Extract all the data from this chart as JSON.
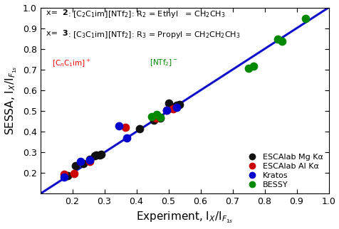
{
  "xlabel": "Experiment, I$_X$/I$_{F_{1s}}$",
  "ylabel": "SESSA, I$_X$/I$_{F_{1s}}$",
  "xlim": [
    0.1,
    1.0
  ],
  "ylim": [
    0.1,
    1.0
  ],
  "xticks": [
    0.2,
    0.3,
    0.4,
    0.5,
    0.6,
    0.7,
    0.8,
    0.9,
    1.0
  ],
  "yticks": [
    0.2,
    0.3,
    0.4,
    0.5,
    0.6,
    0.7,
    0.8,
    0.9,
    1.0
  ],
  "line_color": "#1111cc",
  "line_width": 2.2,
  "black_points": [
    [
      0.185,
      0.187
    ],
    [
      0.21,
      0.235
    ],
    [
      0.235,
      0.247
    ],
    [
      0.255,
      0.267
    ],
    [
      0.27,
      0.282
    ],
    [
      0.275,
      0.288
    ],
    [
      0.285,
      0.286
    ],
    [
      0.29,
      0.292
    ],
    [
      0.41,
      0.415
    ],
    [
      0.455,
      0.457
    ],
    [
      0.475,
      0.465
    ],
    [
      0.5,
      0.537
    ],
    [
      0.51,
      0.522
    ],
    [
      0.525,
      0.527
    ],
    [
      0.535,
      0.532
    ]
  ],
  "red_points": [
    [
      0.175,
      0.196
    ],
    [
      0.205,
      0.198
    ],
    [
      0.255,
      0.257
    ],
    [
      0.365,
      0.422
    ],
    [
      0.46,
      0.465
    ],
    [
      0.495,
      0.503
    ],
    [
      0.515,
      0.512
    ]
  ],
  "blue_points": [
    [
      0.175,
      0.182
    ],
    [
      0.225,
      0.257
    ],
    [
      0.255,
      0.262
    ],
    [
      0.345,
      0.427
    ],
    [
      0.37,
      0.368
    ],
    [
      0.495,
      0.503
    ],
    [
      0.525,
      0.517
    ]
  ],
  "green_points": [
    [
      0.447,
      0.472
    ],
    [
      0.463,
      0.483
    ],
    [
      0.475,
      0.468
    ],
    [
      0.75,
      0.708
    ],
    [
      0.765,
      0.718
    ],
    [
      0.84,
      0.848
    ],
    [
      0.855,
      0.836
    ],
    [
      0.928,
      0.946
    ]
  ],
  "marker_size": 55,
  "black_color": "#111111",
  "red_color": "#cc0000",
  "blue_color": "#0000cc",
  "green_color": "#008800",
  "legend_labels": [
    "ESCAlab Mg Kα",
    "ESCAlab Al Kα",
    "Kratos",
    "BESSY"
  ],
  "legend_colors": [
    "#111111",
    "#cc0000",
    "#0000cc",
    "#008800"
  ],
  "bg_color": "#ffffff",
  "tick_label_fontsize": 9,
  "axis_label_fontsize": 11
}
